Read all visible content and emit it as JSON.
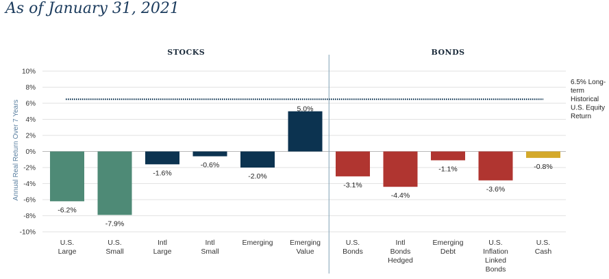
{
  "page": {
    "title": "As of January 31, 2021"
  },
  "chart_data": {
    "type": "bar",
    "categories": [
      [
        "U.S.",
        "Large"
      ],
      [
        "U.S.",
        "Small"
      ],
      [
        "Intl",
        "Large"
      ],
      [
        "Intl",
        "Small"
      ],
      [
        "Emerging"
      ],
      [
        "Emerging",
        "Value"
      ],
      [
        "U.S.",
        "Bonds"
      ],
      [
        "Intl",
        "Bonds",
        "Hedged"
      ],
      [
        "Emerging",
        "Debt"
      ],
      [
        "U.S.",
        "Inflation",
        "Linked",
        "Bonds"
      ],
      [
        "U.S.",
        "Cash"
      ]
    ],
    "values": [
      -6.2,
      -7.9,
      -1.6,
      -0.6,
      -2.0,
      5.0,
      -3.1,
      -4.4,
      -1.1,
      -3.6,
      -0.8
    ],
    "value_labels": [
      "-6.2%",
      "-7.9%",
      "-1.6%",
      "-0.6%",
      "-2.0%",
      "5.0%",
      "-3.1%",
      "-4.4%",
      "-1.1%",
      "-3.6%",
      "-0.8%"
    ],
    "colors": [
      "#4e8a76",
      "#4e8a76",
      "#0c3350",
      "#0c3350",
      "#0c3350",
      "#0c3350",
      "#b03530",
      "#b03530",
      "#b03530",
      "#b03530",
      "#d4a92a"
    ],
    "groups": [
      {
        "label": "STOCKS",
        "start": 0,
        "end": 5
      },
      {
        "label": "BONDS",
        "start": 6,
        "end": 10
      }
    ],
    "ylabel": "Annual Real Return Over 7 Years",
    "ylim": [
      -10,
      10
    ],
    "yticks": [
      10,
      8,
      6,
      4,
      2,
      0,
      -2,
      -4,
      -6,
      -8,
      -10
    ],
    "ytick_labels": [
      "10%",
      "8%",
      "6%",
      "4%",
      "2%",
      "0%",
      "-2%",
      "-4%",
      "-6%",
      "-8%",
      "-10%"
    ],
    "reference_line": {
      "value": 6.5,
      "label_lines": [
        "6.5% Long-",
        "term",
        "Historical",
        "U.S. Equity",
        "Return"
      ]
    },
    "grid": true
  }
}
